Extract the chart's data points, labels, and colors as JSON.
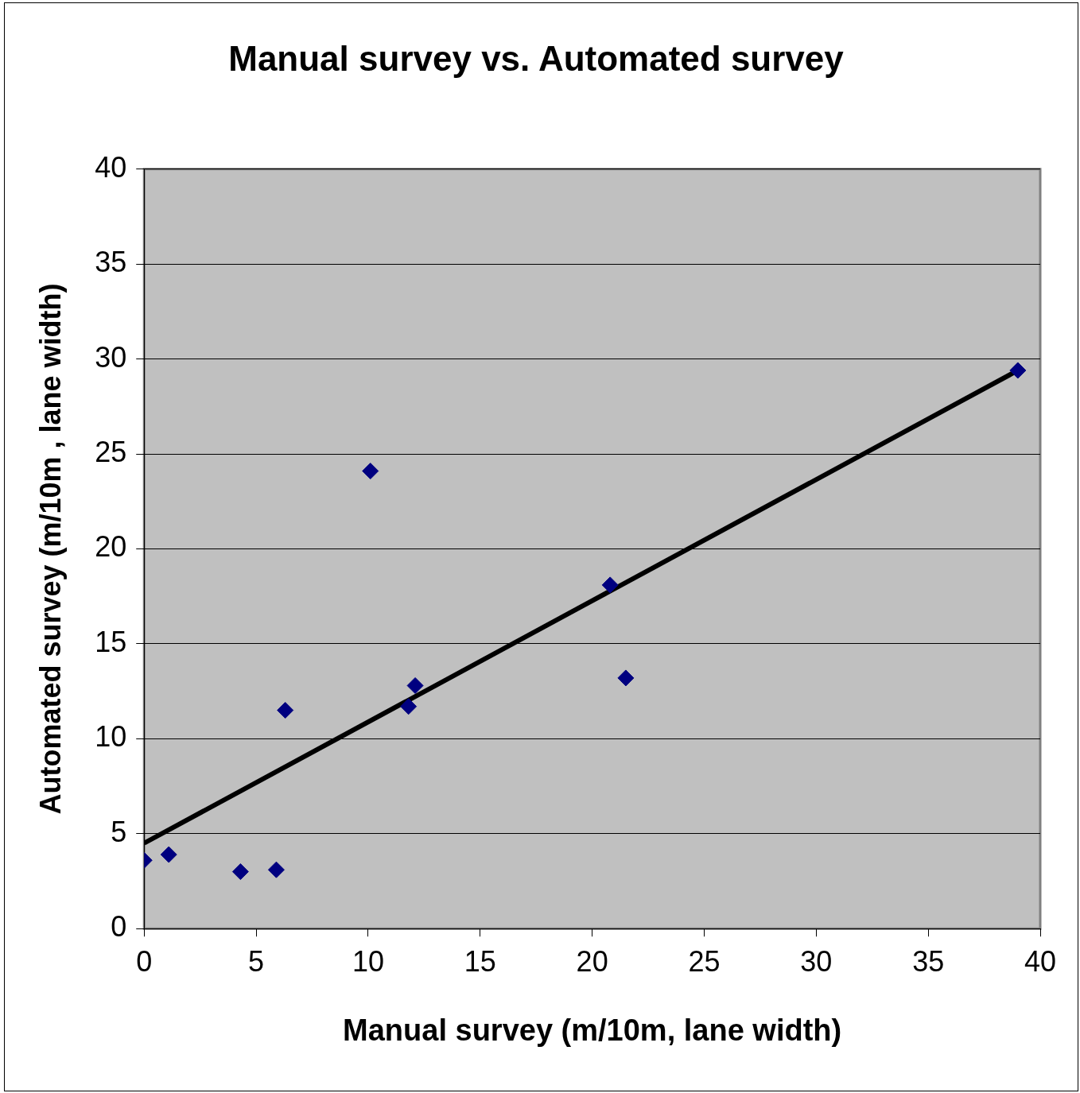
{
  "chart_data": {
    "type": "scatter",
    "title": "Manual survey vs. Automated survey",
    "xlabel": "Manual survey (m/10m, lane width)",
    "ylabel": "Automated survey (m/10m , lane width)",
    "xlim": [
      0,
      40
    ],
    "ylim": [
      0,
      40
    ],
    "xticks": [
      0,
      5,
      10,
      15,
      20,
      25,
      30,
      35,
      40
    ],
    "yticks": [
      0,
      5,
      10,
      15,
      20,
      25,
      30,
      35,
      40
    ],
    "grid": "y",
    "legend": false,
    "series": [
      {
        "color": "#000080",
        "marker": "diamond",
        "x": [
          0,
          1.1,
          4.3,
          5.9,
          6.3,
          10.1,
          11.8,
          12.1,
          20.8,
          21.5,
          39
        ],
        "values": [
          3.6,
          3.9,
          3,
          3.1,
          11.5,
          24.1,
          11.7,
          12.8,
          18.1,
          13.2,
          29.4
        ]
      },
      {
        "type": "line",
        "marker": "none",
        "color": "#000000",
        "x": [
          0,
          39
        ],
        "values": [
          4.5,
          29.4
        ]
      }
    ]
  }
}
